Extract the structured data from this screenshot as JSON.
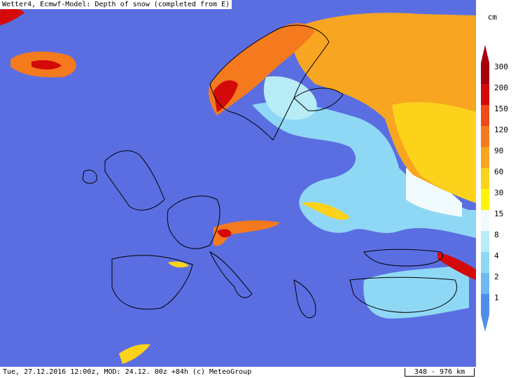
{
  "header": {
    "title": "Wetter4, Ecmwf-Model: Depth of snow (completed from E)"
  },
  "footer": {
    "info": "Tue, 27.12.2016 12:00z, MOD: 24.12. 00z +84h (c) MeteoGroup",
    "scale_label": "348 - 976 km"
  },
  "legend": {
    "unit": "cm",
    "levels": [
      {
        "label": "300",
        "color": "#a8000f"
      },
      {
        "label": "200",
        "color": "#d40a0a"
      },
      {
        "label": "150",
        "color": "#ee4a1a"
      },
      {
        "label": "120",
        "color": "#f47a1d"
      },
      {
        "label": "90",
        "color": "#f8a522"
      },
      {
        "label": "60",
        "color": "#fcd21a"
      },
      {
        "label": "30",
        "color": "#fdf40a"
      },
      {
        "label": "15",
        "color": "#f1fbfd"
      },
      {
        "label": "8",
        "color": "#b7ecf7"
      },
      {
        "label": "4",
        "color": "#8fd8f5"
      },
      {
        "label": "2",
        "color": "#6eb9f2"
      },
      {
        "label": "1",
        "color": "#4f8fea"
      }
    ]
  },
  "map": {
    "sea_color": "#5b6ee1",
    "no_snow_land_color": "#5b6ee1"
  }
}
